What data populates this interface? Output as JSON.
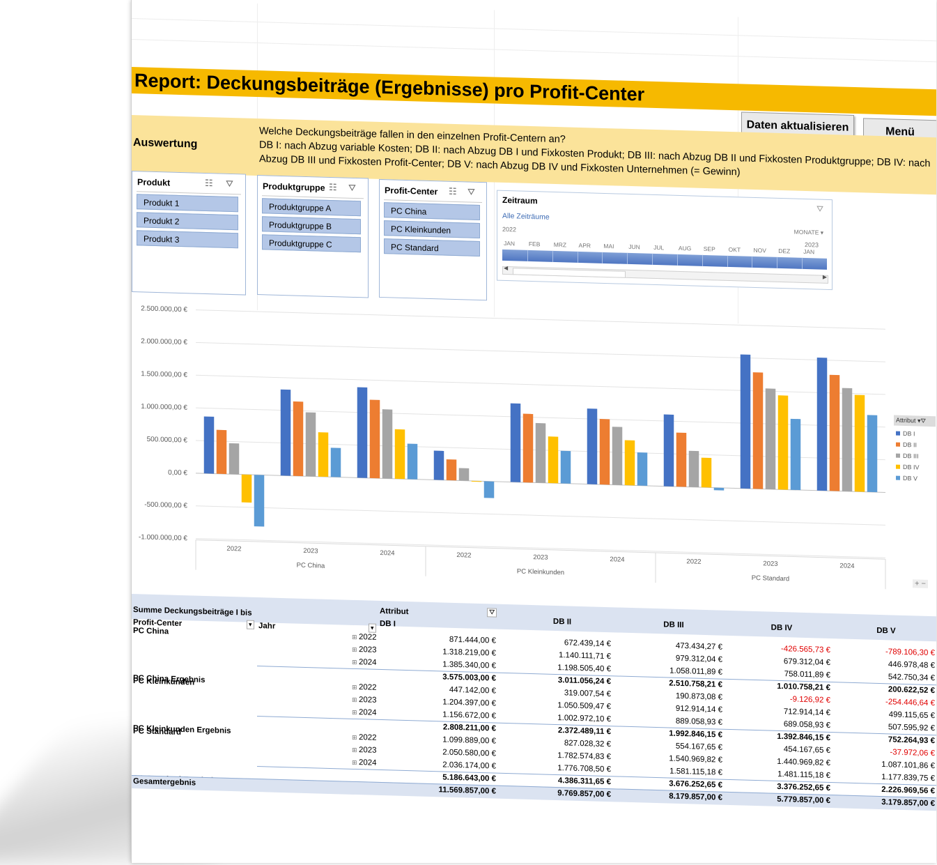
{
  "header": {
    "title": "Report: Deckungsbeiträge (Ergebnisse) pro Profit-Center",
    "refresh_button": "Daten aktualisieren",
    "menu_button": "Menü"
  },
  "evaluation": {
    "label": "Auswertung",
    "line1": "Welche Deckungsbeiträge fallen in den einzelnen Profit-Centern an?",
    "line2": "DB I: nach Abzug variable Kosten; DB II: nach Abzug DB I und Fixkosten Produkt; DB III: nach Abzug DB II und Fixkosten Produktgruppe; DB IV: nach Abzug DB III und Fixkosten Profit-Center; DB V: nach Abzug DB IV und Fixkosten Unternehmen (= Gewinn)"
  },
  "slicers": [
    {
      "title": "Produkt",
      "items": [
        "Produkt 1",
        "Produkt 2",
        "Produkt 3"
      ]
    },
    {
      "title": "Produktgruppe",
      "items": [
        "Produktgruppe A",
        "Produktgruppe B",
        "Produktgruppe C"
      ]
    },
    {
      "title": "Profit-Center",
      "items": [
        "PC China",
        "PC Kleinkunden",
        "PC Standard"
      ]
    }
  ],
  "timeline": {
    "title": "Zeitraum",
    "all_periods": "Alle Zeiträume",
    "level": "MONATE ▾",
    "year1": "2022",
    "year2": "2023",
    "months": [
      "JAN",
      "FEB",
      "MRZ",
      "APR",
      "MAI",
      "JUN",
      "JUL",
      "AUG",
      "SEP",
      "OKT",
      "NOV",
      "DEZ",
      "JAN"
    ]
  },
  "chart_data": {
    "type": "bar",
    "y_axis_labels": [
      "2.500.000,00 €",
      "2.000.000,00 €",
      "1.500.000,00 €",
      "1.000.000,00 €",
      "500.000,00 €",
      "0,00 €",
      "-500.000,00 €",
      "-1.000.000,00 €"
    ],
    "ylim": [
      -1000000,
      2500000
    ],
    "groups": [
      "PC China",
      "PC Kleinkunden",
      "PC Standard"
    ],
    "categories": [
      "2022",
      "2023",
      "2024",
      "2022",
      "2023",
      "2024",
      "2022",
      "2023",
      "2024"
    ],
    "legend_title": "Attribut",
    "series": [
      {
        "name": "DB I",
        "color": "#4472c4",
        "values": [
          871444,
          1318219,
          1385340,
          447142,
          1204397,
          1156672,
          1099889,
          2050580,
          2036174
        ]
      },
      {
        "name": "DB II",
        "color": "#ed7d31",
        "values": [
          672439.14,
          1140111.71,
          1198505.4,
          319007.54,
          1050509.47,
          1002972.1,
          827028.32,
          1782574.83,
          1776708.5
        ]
      },
      {
        "name": "DB III",
        "color": "#a5a5a5",
        "values": [
          473434.27,
          979312.04,
          1058011.89,
          190873.08,
          912914.14,
          889058.93,
          554167.65,
          1540969.82,
          1581115.18
        ]
      },
      {
        "name": "DB IV",
        "color": "#ffc000",
        "values": [
          -426565.73,
          679312.04,
          758011.89,
          -9126.92,
          712914.14,
          689058.93,
          454167.65,
          1440969.82,
          1481115.18
        ]
      },
      {
        "name": "DB V",
        "color": "#5b9bd5",
        "values": [
          -789106.3,
          446978.48,
          542750.34,
          -254446.64,
          499115.65,
          507595.92,
          -37972.06,
          1087101.86,
          1177839.75
        ]
      }
    ]
  },
  "zoom_label": "+ −",
  "pivot": {
    "corner": "Summe Deckungsbeiträge I bis",
    "attribut": "Attribut",
    "col_profit": "Profit-Center",
    "col_jahr": "Jahr",
    "measures": [
      "DB I",
      "DB II",
      "DB III",
      "DB IV",
      "DB V"
    ],
    "rows": [
      {
        "pc": "PC China",
        "year": "2022",
        "v": [
          "871.444,00 €",
          "672.439,14 €",
          "473.434,27 €",
          "-426.565,73 €",
          "-789.106,30 €"
        ]
      },
      {
        "pc": "",
        "year": "2023",
        "v": [
          "1.318.219,00 €",
          "1.140.111,71 €",
          "979.312,04 €",
          "679.312,04 €",
          "446.978,48 €"
        ]
      },
      {
        "pc": "",
        "year": "2024",
        "v": [
          "1.385.340,00 €",
          "1.198.505,40 €",
          "1.058.011,89 €",
          "758.011,89 €",
          "542.750,34 €"
        ]
      },
      {
        "pc": "PC China Ergebnis",
        "year": "",
        "total": true,
        "v": [
          "3.575.003,00 €",
          "3.011.056,24 €",
          "2.510.758,21 €",
          "1.010.758,21 €",
          "200.622,52 €"
        ]
      },
      {
        "pc": "PC Kleinkunden",
        "year": "2022",
        "v": [
          "447.142,00 €",
          "319.007,54 €",
          "190.873,08 €",
          "-9.126,92 €",
          "-254.446,64 €"
        ]
      },
      {
        "pc": "",
        "year": "2023",
        "v": [
          "1.204.397,00 €",
          "1.050.509,47 €",
          "912.914,14 €",
          "712.914,14 €",
          "499.115,65 €"
        ]
      },
      {
        "pc": "",
        "year": "2024",
        "v": [
          "1.156.672,00 €",
          "1.002.972,10 €",
          "889.058,93 €",
          "689.058,93 €",
          "507.595,92 €"
        ]
      },
      {
        "pc": "PC Kleinkunden Ergebnis",
        "year": "",
        "total": true,
        "v": [
          "2.808.211,00 €",
          "2.372.489,11 €",
          "1.992.846,15 €",
          "1.392.846,15 €",
          "752.264,93 €"
        ]
      },
      {
        "pc": "PC Standard",
        "year": "2022",
        "v": [
          "1.099.889,00 €",
          "827.028,32 €",
          "554.167,65 €",
          "454.167,65 €",
          "-37.972,06 €"
        ]
      },
      {
        "pc": "",
        "year": "2023",
        "v": [
          "2.050.580,00 €",
          "1.782.574,83 €",
          "1.540.969,82 €",
          "1.440.969,82 €",
          "1.087.101,86 €"
        ]
      },
      {
        "pc": "",
        "year": "2024",
        "v": [
          "2.036.174,00 €",
          "1.776.708,50 €",
          "1.581.115,18 €",
          "1.481.115,18 €",
          "1.177.839,75 €"
        ]
      },
      {
        "pc": "PC Standard Ergebnis",
        "year": "",
        "total": true,
        "v": [
          "5.186.643,00 €",
          "4.386.311,65 €",
          "3.676.252,65 €",
          "3.376.252,65 €",
          "2.226.969,56 €"
        ]
      },
      {
        "pc": "Gesamtergebnis",
        "year": "",
        "grand": true,
        "v": [
          "11.569.857,00 €",
          "9.769.857,00 €",
          "8.179.857,00 €",
          "5.779.857,00 €",
          "3.179.857,00 €"
        ]
      }
    ]
  }
}
